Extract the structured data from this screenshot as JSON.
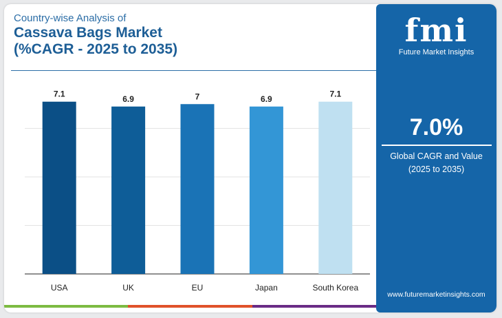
{
  "header": {
    "line1": "Country-wise Analysis of",
    "line2": "Cassava Bags Market",
    "line3": "(%CAGR - 2025 to 2035)"
  },
  "side_panel": {
    "logo_text": "fmi",
    "brand_name": "Future Market Insights",
    "kpi_value": "7.0%",
    "kpi_label_1": "Global CAGR and Value",
    "kpi_label_2": "(2025 to 2035)",
    "website": "www.futuremarketinsights.com"
  },
  "colors": {
    "title": "#1d5e96",
    "panel": "#1565a8",
    "bars": [
      "#0b4f86",
      "#0e5d98",
      "#1a73b6",
      "#3396d6",
      "#bfe0f1"
    ],
    "strip": [
      "#7dbb42",
      "#e0522a",
      "#6a2b86"
    ]
  },
  "chart_data": {
    "type": "bar",
    "categories": [
      "USA",
      "UK",
      "EU",
      "Japan",
      "South Korea"
    ],
    "values": [
      7.1,
      6.9,
      7,
      6.9,
      7.1
    ],
    "data_labels": [
      "7.1",
      "6.9",
      "7",
      "6.9",
      "7.1"
    ],
    "title": "",
    "xlabel": "",
    "ylabel": "",
    "ylim": [
      0,
      8
    ],
    "grid": true,
    "legend": false
  }
}
